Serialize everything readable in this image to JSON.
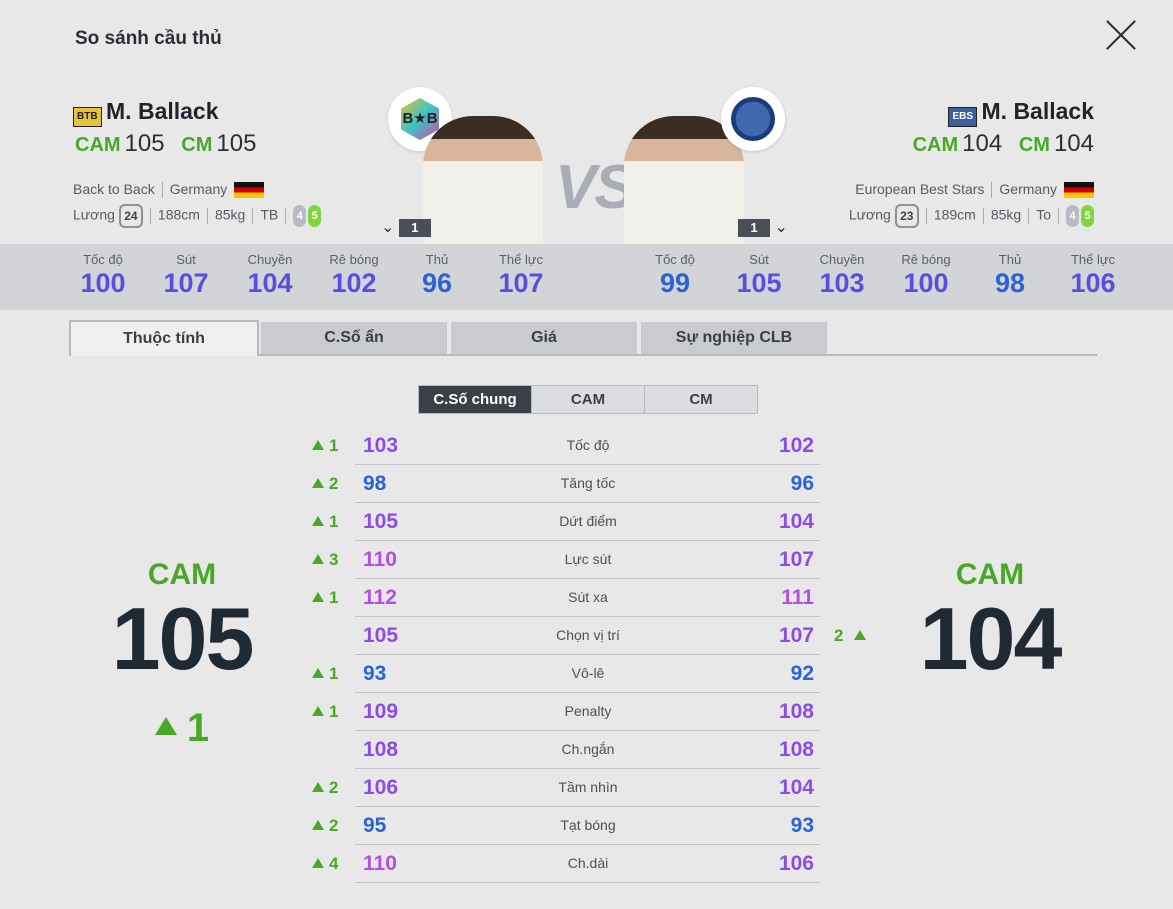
{
  "title": "So sánh cầu thủ",
  "left_player": {
    "season": "BTB",
    "name": "M. Ballack",
    "positions": [
      {
        "pos": "CAM",
        "ovr": "105"
      },
      {
        "pos": "CM",
        "ovr": "105"
      }
    ],
    "team": "Back to Back",
    "nation": "Germany",
    "salary_label": "Lương",
    "salary": "24",
    "height": "188cm",
    "weight": "85kg",
    "body": "TB",
    "weak_foot": "4",
    "strong_foot": "5",
    "level": "1",
    "logo_text": "B★B"
  },
  "right_player": {
    "season": "EBS",
    "name": "M. Ballack",
    "positions": [
      {
        "pos": "CAM",
        "ovr": "104"
      },
      {
        "pos": "CM",
        "ovr": "104"
      }
    ],
    "team": "European Best Stars",
    "nation": "Germany",
    "salary_label": "Lương",
    "salary": "23",
    "height": "189cm",
    "weight": "85kg",
    "body": "To",
    "weak_foot": "4",
    "strong_foot": "5",
    "level": "1"
  },
  "vs": "VS",
  "left_stats": [
    {
      "label": "Tốc độ",
      "value": "100"
    },
    {
      "label": "Sút",
      "value": "107"
    },
    {
      "label": "Chuyền",
      "value": "104"
    },
    {
      "label": "Rê bóng",
      "value": "102"
    },
    {
      "label": "Thủ",
      "value": "96"
    },
    {
      "label": "Thể lực",
      "value": "107"
    }
  ],
  "right_stats": [
    {
      "label": "Tốc độ",
      "value": "99"
    },
    {
      "label": "Sút",
      "value": "105"
    },
    {
      "label": "Chuyền",
      "value": "103"
    },
    {
      "label": "Rê bóng",
      "value": "100"
    },
    {
      "label": "Thủ",
      "value": "98"
    },
    {
      "label": "Thể lực",
      "value": "106"
    }
  ],
  "tabs": [
    "Thuộc tính",
    "C.Số ẩn",
    "Giá",
    "Sự nghiệp CLB"
  ],
  "subtabs": [
    "C.Số chung",
    "CAM",
    "CM"
  ],
  "attributes": [
    {
      "ldiff": "1",
      "left": "103",
      "name": "Tốc độ",
      "right": "102",
      "rdiff": ""
    },
    {
      "ldiff": "2",
      "left": "98",
      "name": "Tăng tốc",
      "right": "96",
      "rdiff": ""
    },
    {
      "ldiff": "1",
      "left": "105",
      "name": "Dứt điểm",
      "right": "104",
      "rdiff": ""
    },
    {
      "ldiff": "3",
      "left": "110",
      "name": "Lực sút",
      "right": "107",
      "rdiff": ""
    },
    {
      "ldiff": "1",
      "left": "112",
      "name": "Sút xa",
      "right": "111",
      "rdiff": ""
    },
    {
      "ldiff": "",
      "left": "105",
      "name": "Chọn vị trí",
      "right": "107",
      "rdiff": "2"
    },
    {
      "ldiff": "1",
      "left": "93",
      "name": "Vô-lê",
      "right": "92",
      "rdiff": ""
    },
    {
      "ldiff": "1",
      "left": "109",
      "name": "Penalty",
      "right": "108",
      "rdiff": ""
    },
    {
      "ldiff": "",
      "left": "108",
      "name": "Ch.ngắn",
      "right": "108",
      "rdiff": ""
    },
    {
      "ldiff": "2",
      "left": "106",
      "name": "Tầm nhìn",
      "right": "104",
      "rdiff": ""
    },
    {
      "ldiff": "2",
      "left": "95",
      "name": "Tạt bóng",
      "right": "93",
      "rdiff": ""
    },
    {
      "ldiff": "4",
      "left": "110",
      "name": "Ch.dài",
      "right": "106",
      "rdiff": ""
    }
  ],
  "left_big": {
    "pos": "CAM",
    "ovr": "105",
    "diff": "1"
  },
  "right_big": {
    "pos": "CAM",
    "ovr": "104"
  },
  "colors": {
    "accent_green": "#4aa829",
    "tab_active": "#3b4048"
  }
}
